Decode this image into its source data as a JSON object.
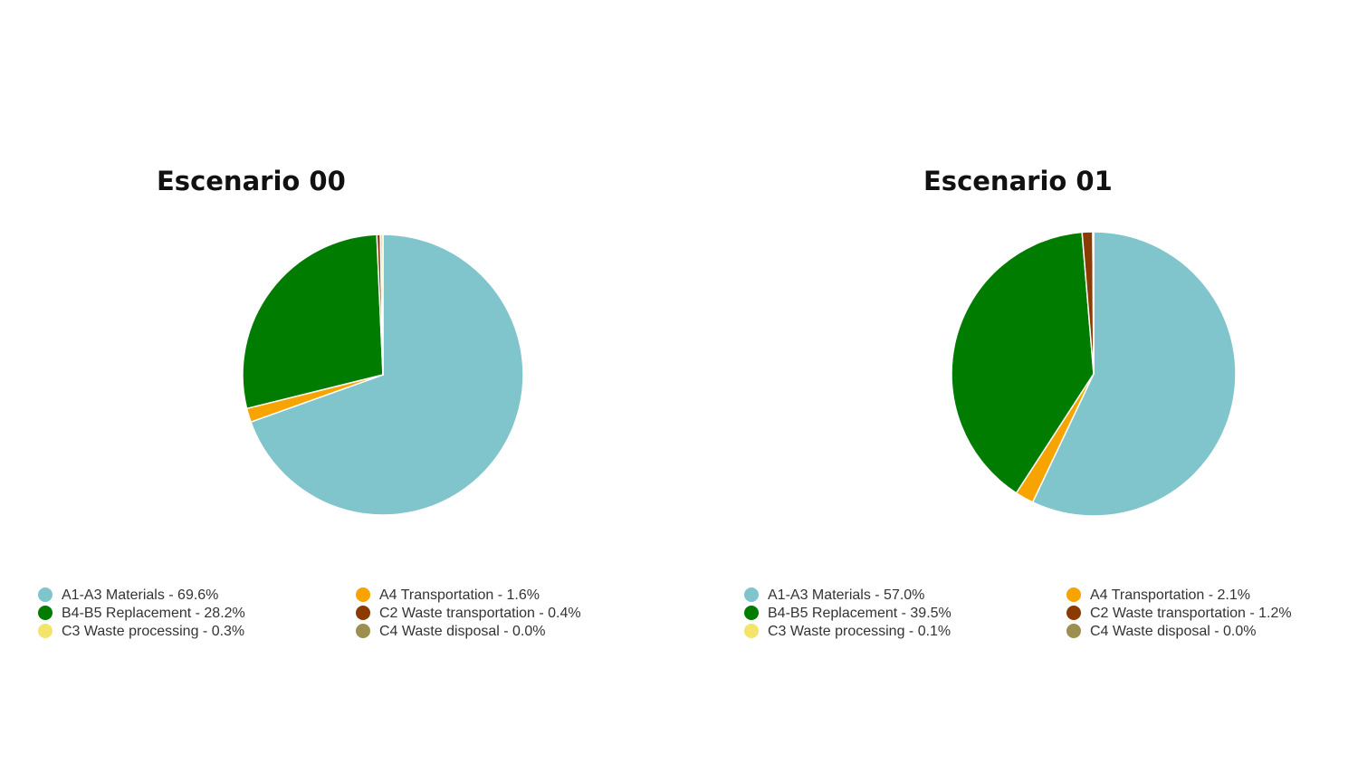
{
  "chart_data": [
    {
      "type": "pie",
      "title": "Escenario 00",
      "slices": [
        {
          "label": "A1-A3 Materials - 69.6%",
          "value": 69.6,
          "color": "#80c4cc"
        },
        {
          "label": "A4 Transportation - 1.6%",
          "value": 1.6,
          "color": "#f7a300"
        },
        {
          "label": "B4-B5 Replacement - 28.2%",
          "value": 28.2,
          "color": "#007d00"
        },
        {
          "label": "C2 Waste transportation - 0.4%",
          "value": 0.4,
          "color": "#8b3a00"
        },
        {
          "label": "C3 Waste processing - 0.3%",
          "value": 0.3,
          "color": "#f2e56a"
        },
        {
          "label": "C4 Waste disposal - 0.0%",
          "value": 0.0,
          "color": "#9c8f4f"
        }
      ],
      "legend_order": [
        0,
        1,
        2,
        3,
        4,
        5
      ]
    },
    {
      "type": "pie",
      "title": "Escenario 01",
      "slices": [
        {
          "label": "A1-A3 Materials - 57.0%",
          "value": 57.0,
          "color": "#80c4cc"
        },
        {
          "label": "A4 Transportation - 2.1%",
          "value": 2.1,
          "color": "#f7a300"
        },
        {
          "label": "B4-B5 Replacement - 39.5%",
          "value": 39.5,
          "color": "#007d00"
        },
        {
          "label": "C2 Waste transportation - 1.2%",
          "value": 1.2,
          "color": "#8b3a00"
        },
        {
          "label": "C3 Waste processing - 0.1%",
          "value": 0.1,
          "color": "#f2e56a"
        },
        {
          "label": "C4 Waste disposal - 0.0%",
          "value": 0.0,
          "color": "#9c8f4f"
        }
      ],
      "legend_order": [
        0,
        1,
        2,
        3,
        4,
        5
      ]
    }
  ]
}
